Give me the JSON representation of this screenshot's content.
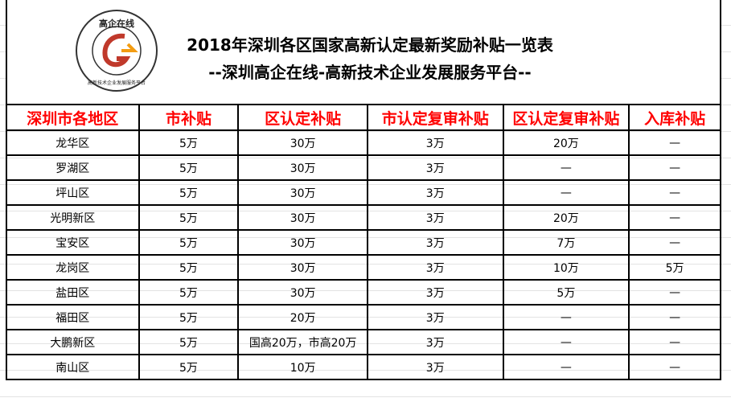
{
  "title": "2018年深圳各区国家高新认定最新奖励补贴一览表",
  "subtitle": "--深圳高企在线-高新技术企业发展服务平台--",
  "logo": {
    "top_text": "高企在线",
    "ring_text": "高新技术企业发展服务平台",
    "colors": [
      "#c0392b",
      "#f39c12"
    ]
  },
  "header_color": "#ff0000",
  "columns": [
    "深圳市各地区",
    "市补贴",
    "区认定补贴",
    "市认定复审补贴",
    "区认定复审补贴",
    "入库补贴"
  ],
  "rows": [
    [
      "龙华区",
      "5万",
      "30万",
      "3万",
      "20万",
      "—"
    ],
    [
      "罗湖区",
      "5万",
      "30万",
      "3万",
      "—",
      "—"
    ],
    [
      "坪山区",
      "5万",
      "30万",
      "3万",
      "—",
      "—"
    ],
    [
      "光明新区",
      "5万",
      "30万",
      "3万",
      "20万",
      "—"
    ],
    [
      "宝安区",
      "5万",
      "30万",
      "3万",
      "7万",
      "—"
    ],
    [
      "龙岗区",
      "5万",
      "30万",
      "3万",
      "10万",
      "5万"
    ],
    [
      "盐田区",
      "5万",
      "30万",
      "3万",
      "5万",
      "—"
    ],
    [
      "福田区",
      "5万",
      "20万",
      "3万",
      "—",
      "—"
    ],
    [
      "大鹏新区",
      "5万",
      "国高20万，市高20万",
      "3万",
      "—",
      "—"
    ],
    [
      "南山区",
      "5万",
      "10万",
      "3万",
      "—",
      "—"
    ]
  ]
}
